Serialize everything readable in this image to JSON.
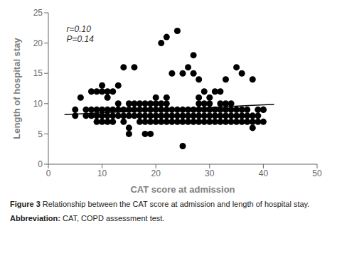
{
  "chart_data": {
    "type": "scatter",
    "x_label": "CAT score at admission",
    "y_label": "Length of hospital stay",
    "xlim": [
      0,
      50
    ],
    "ylim": [
      0,
      25
    ],
    "xticks": [
      0,
      10,
      20,
      30,
      40,
      50
    ],
    "yticks": [
      0,
      5,
      10,
      15,
      20,
      25
    ],
    "color": "#000000",
    "x": [
      5,
      5,
      6,
      7,
      7,
      8,
      8,
      8,
      9,
      9,
      9,
      9,
      10,
      10,
      10,
      10,
      10,
      11,
      11,
      11,
      11,
      11,
      12,
      12,
      12,
      12,
      13,
      13,
      13,
      13,
      14,
      14,
      14,
      14,
      15,
      15,
      15,
      15,
      15,
      16,
      16,
      16,
      16,
      17,
      17,
      17,
      17,
      18,
      18,
      18,
      18,
      18,
      19,
      19,
      19,
      19,
      19,
      20,
      20,
      20,
      20,
      20,
      21,
      21,
      21,
      21,
      21,
      22,
      22,
      22,
      22,
      22,
      22,
      23,
      23,
      23,
      23,
      24,
      24,
      24,
      24,
      25,
      25,
      25,
      25,
      25,
      26,
      26,
      26,
      26,
      27,
      27,
      27,
      27,
      27,
      28,
      28,
      28,
      28,
      28,
      28,
      29,
      29,
      29,
      29,
      29,
      30,
      30,
      30,
      30,
      30,
      31,
      31,
      31,
      31,
      32,
      32,
      32,
      32,
      32,
      33,
      33,
      33,
      33,
      33,
      34,
      34,
      34,
      34,
      35,
      35,
      35,
      35,
      36,
      36,
      36,
      36,
      37,
      37,
      37,
      38,
      38,
      38,
      38,
      39,
      39,
      39,
      40,
      40,
      40
    ],
    "values": [
      8,
      9,
      11,
      8,
      9,
      8,
      9,
      12,
      7,
      8,
      9,
      12,
      7,
      8,
      9,
      12,
      13,
      7,
      8,
      9,
      11,
      12,
      7,
      8,
      9,
      12,
      8,
      9,
      10,
      13,
      7,
      8,
      9,
      16,
      5,
      6,
      8,
      9,
      10,
      8,
      9,
      10,
      16,
      7,
      8,
      9,
      10,
      5,
      7,
      8,
      9,
      10,
      5,
      7,
      8,
      9,
      10,
      7,
      8,
      9,
      10,
      11,
      7,
      8,
      9,
      10,
      20,
      7,
      8,
      9,
      10,
      11,
      21,
      7,
      8,
      9,
      15,
      7,
      8,
      9,
      22,
      7,
      8,
      9,
      15,
      3,
      7,
      8,
      9,
      16,
      7,
      8,
      9,
      15,
      18,
      7,
      8,
      9,
      10,
      11,
      14,
      7,
      8,
      9,
      10,
      12,
      7,
      8,
      9,
      10,
      11,
      7,
      8,
      9,
      12,
      7,
      8,
      9,
      10,
      12,
      7,
      8,
      9,
      10,
      14,
      7,
      8,
      9,
      10,
      7,
      8,
      9,
      16,
      7,
      8,
      9,
      15,
      7,
      8,
      9,
      6,
      7,
      8,
      14,
      7,
      8,
      9,
      7,
      9,
      9
    ],
    "line": {
      "x": [
        3,
        42
      ],
      "y": [
        8.2,
        9.9
      ],
      "color": "#000000"
    },
    "annotations": [
      {
        "text": "r=0.10\nP=0.14",
        "x": 3.5,
        "y": 23
      }
    ],
    "captions": [
      {
        "bold": "Figure 3",
        "text": "Relationship between the CAT score at admission and length of hospital stay."
      },
      {
        "bold": "Abbreviation:",
        "text": "CAT, COPD assessment test."
      }
    ]
  }
}
